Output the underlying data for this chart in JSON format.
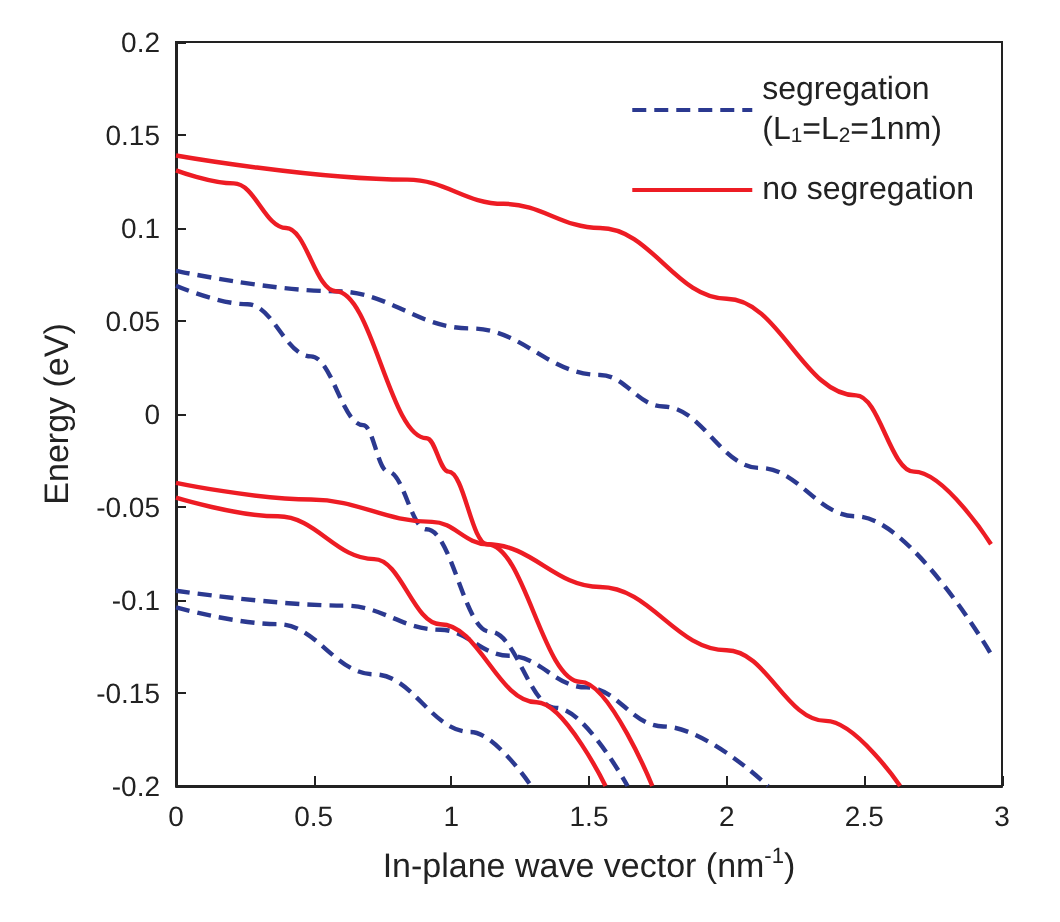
{
  "chart_data": {
    "type": "line",
    "xlabel": "In-plane wave vector (nm$^{-1}$)",
    "ylabel": "Energy (eV)",
    "xlim": [
      0,
      3
    ],
    "xticks": [
      0,
      0.5,
      1,
      1.5,
      2,
      2.5,
      3
    ],
    "ylim": [
      -0.2,
      0.2
    ],
    "yticks": [
      -0.2,
      -0.15,
      -0.1,
      -0.05,
      0,
      0.05,
      0.1,
      0.15,
      0.2
    ],
    "grid": false,
    "legend": "top right",
    "marker": "none",
    "series": [
      {
        "name": "segregation\n(L$_{1}$=L$_{2}$=1nm)",
        "color": "#2b3990",
        "line_style": "dashed",
        "x": [
          0,
          0.58,
          1.07,
          1.54,
          1.77,
          2.12,
          2.47,
          2.96
        ],
        "values": [
          0.077,
          0.066,
          0.046,
          0.021,
          0.004,
          -0.029,
          -0.055,
          -0.129
        ]
      },
      {
        "color": "#2b3990",
        "line_style": "dashed",
        "x": [
          0,
          0.26,
          0.49,
          0.68,
          0.77,
          0.91,
          1.14,
          1.38,
          1.64
        ],
        "values": [
          0.069,
          0.059,
          0.031,
          -0.006,
          -0.031,
          -0.062,
          -0.117,
          -0.158,
          -0.2
        ]
      },
      {
        "color": "#2b3990",
        "line_style": "dashed",
        "x": [
          0,
          0.61,
          0.96,
          1.21,
          1.49,
          1.77,
          2.15
        ],
        "values": [
          -0.095,
          -0.103,
          -0.116,
          -0.13,
          -0.147,
          -0.168,
          -0.2
        ]
      },
      {
        "color": "#2b3990",
        "line_style": "dashed",
        "x": [
          0,
          0.37,
          0.72,
          1.07,
          1.29
        ],
        "values": [
          -0.104,
          -0.113,
          -0.14,
          -0.171,
          -0.2
        ]
      },
      {
        "name": "no segregation",
        "color": "#ed1c24",
        "line_style": "solid",
        "x": [
          0,
          0.84,
          1.19,
          1.54,
          2.0,
          2.47,
          2.68,
          2.96
        ],
        "values": [
          0.139,
          0.126,
          0.113,
          0.1,
          0.062,
          0.01,
          -0.031,
          -0.07
        ]
      },
      {
        "color": "#ed1c24",
        "line_style": "solid",
        "x": [
          0,
          0.21,
          0.4,
          0.58,
          0.91,
          0.99,
          1.13,
          1.47,
          1.73
        ],
        "values": [
          0.131,
          0.124,
          0.1,
          0.066,
          -0.013,
          -0.031,
          -0.07,
          -0.144,
          -0.2
        ]
      },
      {
        "color": "#ed1c24",
        "line_style": "solid",
        "x": [
          0,
          0.49,
          0.93,
          1.13,
          1.54,
          2.0,
          2.36,
          2.63
        ],
        "values": [
          -0.037,
          -0.046,
          -0.058,
          -0.07,
          -0.093,
          -0.127,
          -0.165,
          -0.2
        ]
      },
      {
        "color": "#ed1c24",
        "line_style": "solid",
        "x": [
          0,
          0.37,
          0.72,
          0.96,
          1.31,
          1.56
        ],
        "values": [
          -0.045,
          -0.055,
          -0.078,
          -0.113,
          -0.155,
          -0.2
        ]
      }
    ]
  }
}
